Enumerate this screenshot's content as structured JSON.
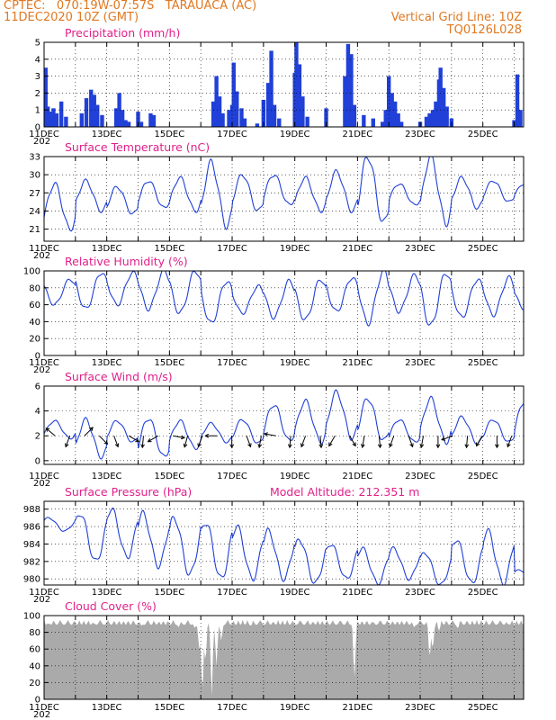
{
  "header": {
    "line1": "CPTEC:   070:19W-07:57S   TARAUACA (AC)",
    "line2": "11DEC2020 10Z (GMT)",
    "grid_note": "Vertical Grid Line: 10Z",
    "code": "TQ0126L028",
    "color": "#e07820"
  },
  "x_axis": {
    "start_label": "11DEC",
    "year_fragment": "202",
    "range_days": [
      0,
      15.3
    ],
    "ticks": [
      {
        "day": 0,
        "label": "11DEC"
      },
      {
        "day": 2,
        "label": "13DEC"
      },
      {
        "day": 4,
        "label": "15DEC"
      },
      {
        "day": 6,
        "label": "17DEC"
      },
      {
        "day": 8,
        "label": "19DEC"
      },
      {
        "day": 10,
        "label": "21DEC"
      },
      {
        "day": 12,
        "label": "23DEC"
      },
      {
        "day": 14,
        "label": "25DEC"
      }
    ]
  },
  "colors": {
    "line": "#2040d8",
    "bar": "#2040d8",
    "cloud": "#aaaaaa",
    "title": "#e0208a"
  },
  "chart_data": [
    {
      "type": "bar",
      "title": "Precipitation (mm/h)",
      "ylim": [
        0,
        5
      ],
      "yticks": [
        0,
        1,
        2,
        3,
        4,
        5
      ],
      "events": [
        {
          "x": 0.05,
          "v": 3.5
        },
        {
          "x": 0.12,
          "v": 1.2
        },
        {
          "x": 0.2,
          "v": 0.9
        },
        {
          "x": 0.3,
          "v": 1.1
        },
        {
          "x": 0.4,
          "v": 0.8
        },
        {
          "x": 0.55,
          "v": 1.5
        },
        {
          "x": 0.7,
          "v": 0.6
        },
        {
          "x": 1.2,
          "v": 0.8
        },
        {
          "x": 1.35,
          "v": 1.7
        },
        {
          "x": 1.5,
          "v": 2.2
        },
        {
          "x": 1.6,
          "v": 1.9
        },
        {
          "x": 1.7,
          "v": 1.3
        },
        {
          "x": 1.85,
          "v": 0.7
        },
        {
          "x": 2.3,
          "v": 1.1
        },
        {
          "x": 2.4,
          "v": 2.0
        },
        {
          "x": 2.5,
          "v": 1.0
        },
        {
          "x": 2.6,
          "v": 0.4
        },
        {
          "x": 2.7,
          "v": 0.3
        },
        {
          "x": 3.0,
          "v": 0.9
        },
        {
          "x": 3.1,
          "v": 0.3
        },
        {
          "x": 3.4,
          "v": 0.8
        },
        {
          "x": 3.5,
          "v": 0.7
        },
        {
          "x": 5.4,
          "v": 1.5
        },
        {
          "x": 5.5,
          "v": 3.0
        },
        {
          "x": 5.6,
          "v": 1.8
        },
        {
          "x": 5.7,
          "v": 0.8
        },
        {
          "x": 5.9,
          "v": 1.0
        },
        {
          "x": 6.0,
          "v": 1.3
        },
        {
          "x": 6.05,
          "v": 3.8
        },
        {
          "x": 6.15,
          "v": 2.1
        },
        {
          "x": 6.3,
          "v": 1.1
        },
        {
          "x": 6.4,
          "v": 0.5
        },
        {
          "x": 6.8,
          "v": 0.2
        },
        {
          "x": 7.0,
          "v": 1.6
        },
        {
          "x": 7.15,
          "v": 2.6
        },
        {
          "x": 7.25,
          "v": 4.5
        },
        {
          "x": 7.35,
          "v": 1.3
        },
        {
          "x": 7.5,
          "v": 0.5
        },
        {
          "x": 8.0,
          "v": 3.2
        },
        {
          "x": 8.05,
          "v": 5.0
        },
        {
          "x": 8.15,
          "v": 3.7
        },
        {
          "x": 8.25,
          "v": 1.8
        },
        {
          "x": 8.4,
          "v": 0.6
        },
        {
          "x": 9.0,
          "v": 1.1
        },
        {
          "x": 9.6,
          "v": 3.0
        },
        {
          "x": 9.7,
          "v": 4.9
        },
        {
          "x": 9.8,
          "v": 4.3
        },
        {
          "x": 9.9,
          "v": 1.3
        },
        {
          "x": 10.2,
          "v": 0.7
        },
        {
          "x": 10.5,
          "v": 0.5
        },
        {
          "x": 10.8,
          "v": 0.3
        },
        {
          "x": 10.9,
          "v": 1.0
        },
        {
          "x": 11.0,
          "v": 3.0
        },
        {
          "x": 11.1,
          "v": 2.0
        },
        {
          "x": 11.2,
          "v": 1.5
        },
        {
          "x": 11.3,
          "v": 0.8
        },
        {
          "x": 11.4,
          "v": 0.3
        },
        {
          "x": 12.0,
          "v": 0.3
        },
        {
          "x": 12.2,
          "v": 0.6
        },
        {
          "x": 12.3,
          "v": 0.8
        },
        {
          "x": 12.4,
          "v": 1.0
        },
        {
          "x": 12.5,
          "v": 1.5
        },
        {
          "x": 12.6,
          "v": 2.8
        },
        {
          "x": 12.65,
          "v": 3.5
        },
        {
          "x": 12.75,
          "v": 2.3
        },
        {
          "x": 12.85,
          "v": 1.2
        },
        {
          "x": 13.0,
          "v": 0.5
        },
        {
          "x": 15.0,
          "v": 0.4
        },
        {
          "x": 15.1,
          "v": 3.1
        },
        {
          "x": 15.2,
          "v": 1.0
        }
      ]
    },
    {
      "type": "line",
      "title": "Surface Temperature (nC)",
      "ylim": [
        19,
        33
      ],
      "yticks": [
        21,
        24,
        27,
        30,
        33
      ],
      "daily": [
        {
          "min": 21.0,
          "max": 28.5
        },
        {
          "min": 24.0,
          "max": 29.0
        },
        {
          "min": 23.5,
          "max": 28.0
        },
        {
          "min": 24.5,
          "max": 29.0
        },
        {
          "min": 24.0,
          "max": 29.5
        },
        {
          "min": 21.5,
          "max": 32.0
        },
        {
          "min": 24.0,
          "max": 30.0
        },
        {
          "min": 25.0,
          "max": 30.0
        },
        {
          "min": 24.0,
          "max": 29.5
        },
        {
          "min": 24.0,
          "max": 30.5
        },
        {
          "min": 22.0,
          "max": 33.0
        },
        {
          "min": 25.0,
          "max": 28.5
        },
        {
          "min": 22.0,
          "max": 33.0
        },
        {
          "min": 24.5,
          "max": 29.5
        },
        {
          "min": 25.5,
          "max": 29.0
        },
        {
          "min": 26.0,
          "max": 28.5
        }
      ]
    },
    {
      "type": "line",
      "title": "Relative Humidity (%)",
      "ylim": [
        0,
        100
      ],
      "yticks": [
        0,
        20,
        40,
        60,
        80,
        100
      ],
      "daily": [
        {
          "min": 60,
          "max": 90
        },
        {
          "min": 55,
          "max": 98
        },
        {
          "min": 60,
          "max": 98
        },
        {
          "min": 55,
          "max": 100
        },
        {
          "min": 50,
          "max": 100
        },
        {
          "min": 38,
          "max": 88
        },
        {
          "min": 50,
          "max": 82
        },
        {
          "min": 45,
          "max": 88
        },
        {
          "min": 42,
          "max": 90
        },
        {
          "min": 52,
          "max": 92
        },
        {
          "min": 38,
          "max": 100
        },
        {
          "min": 52,
          "max": 95
        },
        {
          "min": 35,
          "max": 98
        },
        {
          "min": 45,
          "max": 90
        },
        {
          "min": 48,
          "max": 92
        },
        {
          "min": 55,
          "max": 82
        }
      ]
    },
    {
      "type": "line",
      "title": "Surface Wind (m/s)",
      "ylim": [
        -0.3,
        6
      ],
      "yticks": [
        0,
        2,
        4,
        6
      ],
      "daily": [
        {
          "min": 1.8,
          "max": 3.2
        },
        {
          "min": 0.3,
          "max": 3.3
        },
        {
          "min": 1.5,
          "max": 3.2
        },
        {
          "min": 0.3,
          "max": 3.4
        },
        {
          "min": 1.0,
          "max": 3.2
        },
        {
          "min": 1.5,
          "max": 3.0
        },
        {
          "min": 1.4,
          "max": 3.3
        },
        {
          "min": 1.6,
          "max": 4.5
        },
        {
          "min": 1.5,
          "max": 4.8
        },
        {
          "min": 1.8,
          "max": 5.5
        },
        {
          "min": 1.6,
          "max": 5.0
        },
        {
          "min": 1.5,
          "max": 3.3
        },
        {
          "min": 1.5,
          "max": 5.0
        },
        {
          "min": 1.4,
          "max": 3.5
        },
        {
          "min": 1.5,
          "max": 3.3
        },
        {
          "min": 1.5,
          "max": 4.8
        }
      ],
      "vectors_deg": [
        310,
        200,
        45,
        135,
        160,
        120,
        185,
        240,
        100,
        195,
        200,
        270,
        180,
        160,
        190,
        280,
        185,
        200,
        175,
        210,
        150,
        190,
        175,
        200,
        160,
        190,
        180,
        250,
        185,
        210,
        180,
        200
      ]
    },
    {
      "type": "line",
      "title": "Surface Pressure (hPa)",
      "subtitle": "Model Altitude: 212.351  m",
      "ylim": [
        979.3,
        988.9
      ],
      "yticks": [
        980,
        982,
        984,
        986,
        988
      ],
      "daily": [
        {
          "min": 985.5,
          "max": 987.0
        },
        {
          "min": 982.0,
          "max": 987.5
        },
        {
          "min": 982.5,
          "max": 988.0
        },
        {
          "min": 981.5,
          "max": 987.5
        },
        {
          "min": 980.5,
          "max": 987.0
        },
        {
          "min": 980.0,
          "max": 986.5
        },
        {
          "min": 980.0,
          "max": 986.0
        },
        {
          "min": 980.0,
          "max": 985.5
        },
        {
          "min": 979.5,
          "max": 984.5
        },
        {
          "min": 980.0,
          "max": 984.0
        },
        {
          "min": 979.5,
          "max": 983.5
        },
        {
          "min": 980.0,
          "max": 983.5
        },
        {
          "min": 979.3,
          "max": 983.0
        },
        {
          "min": 979.5,
          "max": 984.5
        },
        {
          "min": 979.5,
          "max": 985.5
        },
        {
          "min": 980.0,
          "max": 981.0
        }
      ]
    },
    {
      "type": "area",
      "title": "Cloud Cover (%)",
      "ylim": [
        0,
        100
      ],
      "yticks": [
        0,
        20,
        40,
        60,
        80,
        100
      ],
      "base_level": 95,
      "dips": [
        {
          "x": 0.15,
          "v": 90
        },
        {
          "x": 1.2,
          "v": 92
        },
        {
          "x": 1.6,
          "v": 90
        },
        {
          "x": 2.3,
          "v": 92
        },
        {
          "x": 3.1,
          "v": 88
        },
        {
          "x": 3.6,
          "v": 90
        },
        {
          "x": 4.3,
          "v": 86
        },
        {
          "x": 4.8,
          "v": 85
        },
        {
          "x": 4.95,
          "v": 60
        },
        {
          "x": 5.05,
          "v": 8
        },
        {
          "x": 5.15,
          "v": 45
        },
        {
          "x": 5.35,
          "v": 3
        },
        {
          "x": 5.5,
          "v": 40
        },
        {
          "x": 5.65,
          "v": 70
        },
        {
          "x": 6.1,
          "v": 90
        },
        {
          "x": 6.6,
          "v": 88
        },
        {
          "x": 7.3,
          "v": 92
        },
        {
          "x": 8.0,
          "v": 90
        },
        {
          "x": 8.6,
          "v": 92
        },
        {
          "x": 9.3,
          "v": 90
        },
        {
          "x": 9.9,
          "v": 25
        },
        {
          "x": 10.5,
          "v": 92
        },
        {
          "x": 11.2,
          "v": 90
        },
        {
          "x": 11.8,
          "v": 86
        },
        {
          "x": 12.3,
          "v": 50
        },
        {
          "x": 12.4,
          "v": 60
        },
        {
          "x": 12.6,
          "v": 82
        },
        {
          "x": 13.2,
          "v": 85
        },
        {
          "x": 13.6,
          "v": 90
        },
        {
          "x": 14.2,
          "v": 93
        },
        {
          "x": 14.8,
          "v": 90
        }
      ]
    }
  ]
}
